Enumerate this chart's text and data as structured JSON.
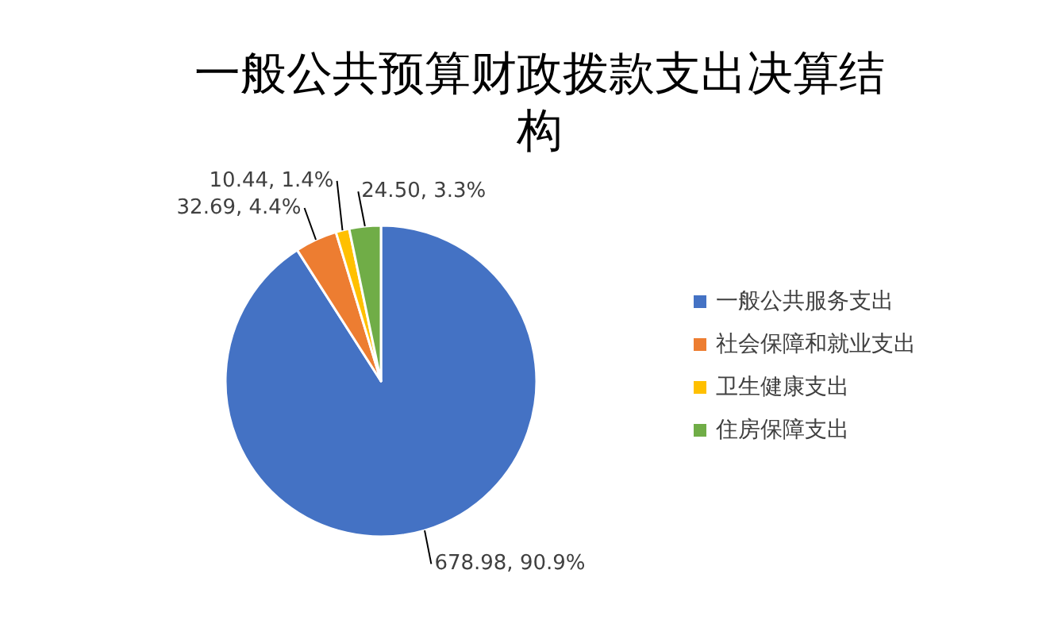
{
  "chart_data": {
    "type": "pie",
    "title": "一般公共预算财政拨款支出决算结构",
    "categories": [
      "一般公共服务支出",
      "社会保障和就业支出",
      "卫生健康支出",
      "住房保障支出"
    ],
    "values": [
      678.98,
      32.69,
      10.44,
      24.5
    ],
    "value_labels": [
      "678.98, 90.9%",
      "32.69, 4.4%",
      "10.44, 1.4%",
      "24.50, 3.3%"
    ],
    "colors": [
      "#4472c4",
      "#ed7d31",
      "#ffc000",
      "#70ad47"
    ],
    "legend": "right"
  }
}
